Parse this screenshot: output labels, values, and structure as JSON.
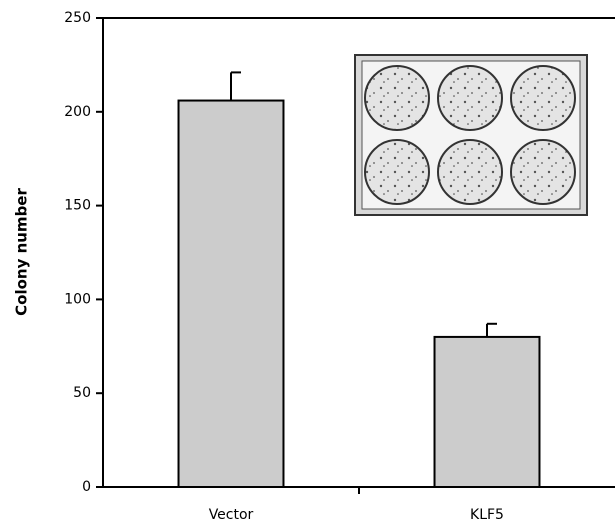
{
  "chart_data": {
    "type": "bar",
    "y_label": "Colony number",
    "categories": [
      "Vector",
      "KLF5"
    ],
    "values": [
      206,
      80
    ],
    "errors": [
      15,
      7
    ],
    "color": "#cccccc",
    "ylim": [
      0,
      250
    ],
    "yticks": [
      0,
      50,
      100,
      150,
      200,
      250
    ],
    "grid": false
  }
}
